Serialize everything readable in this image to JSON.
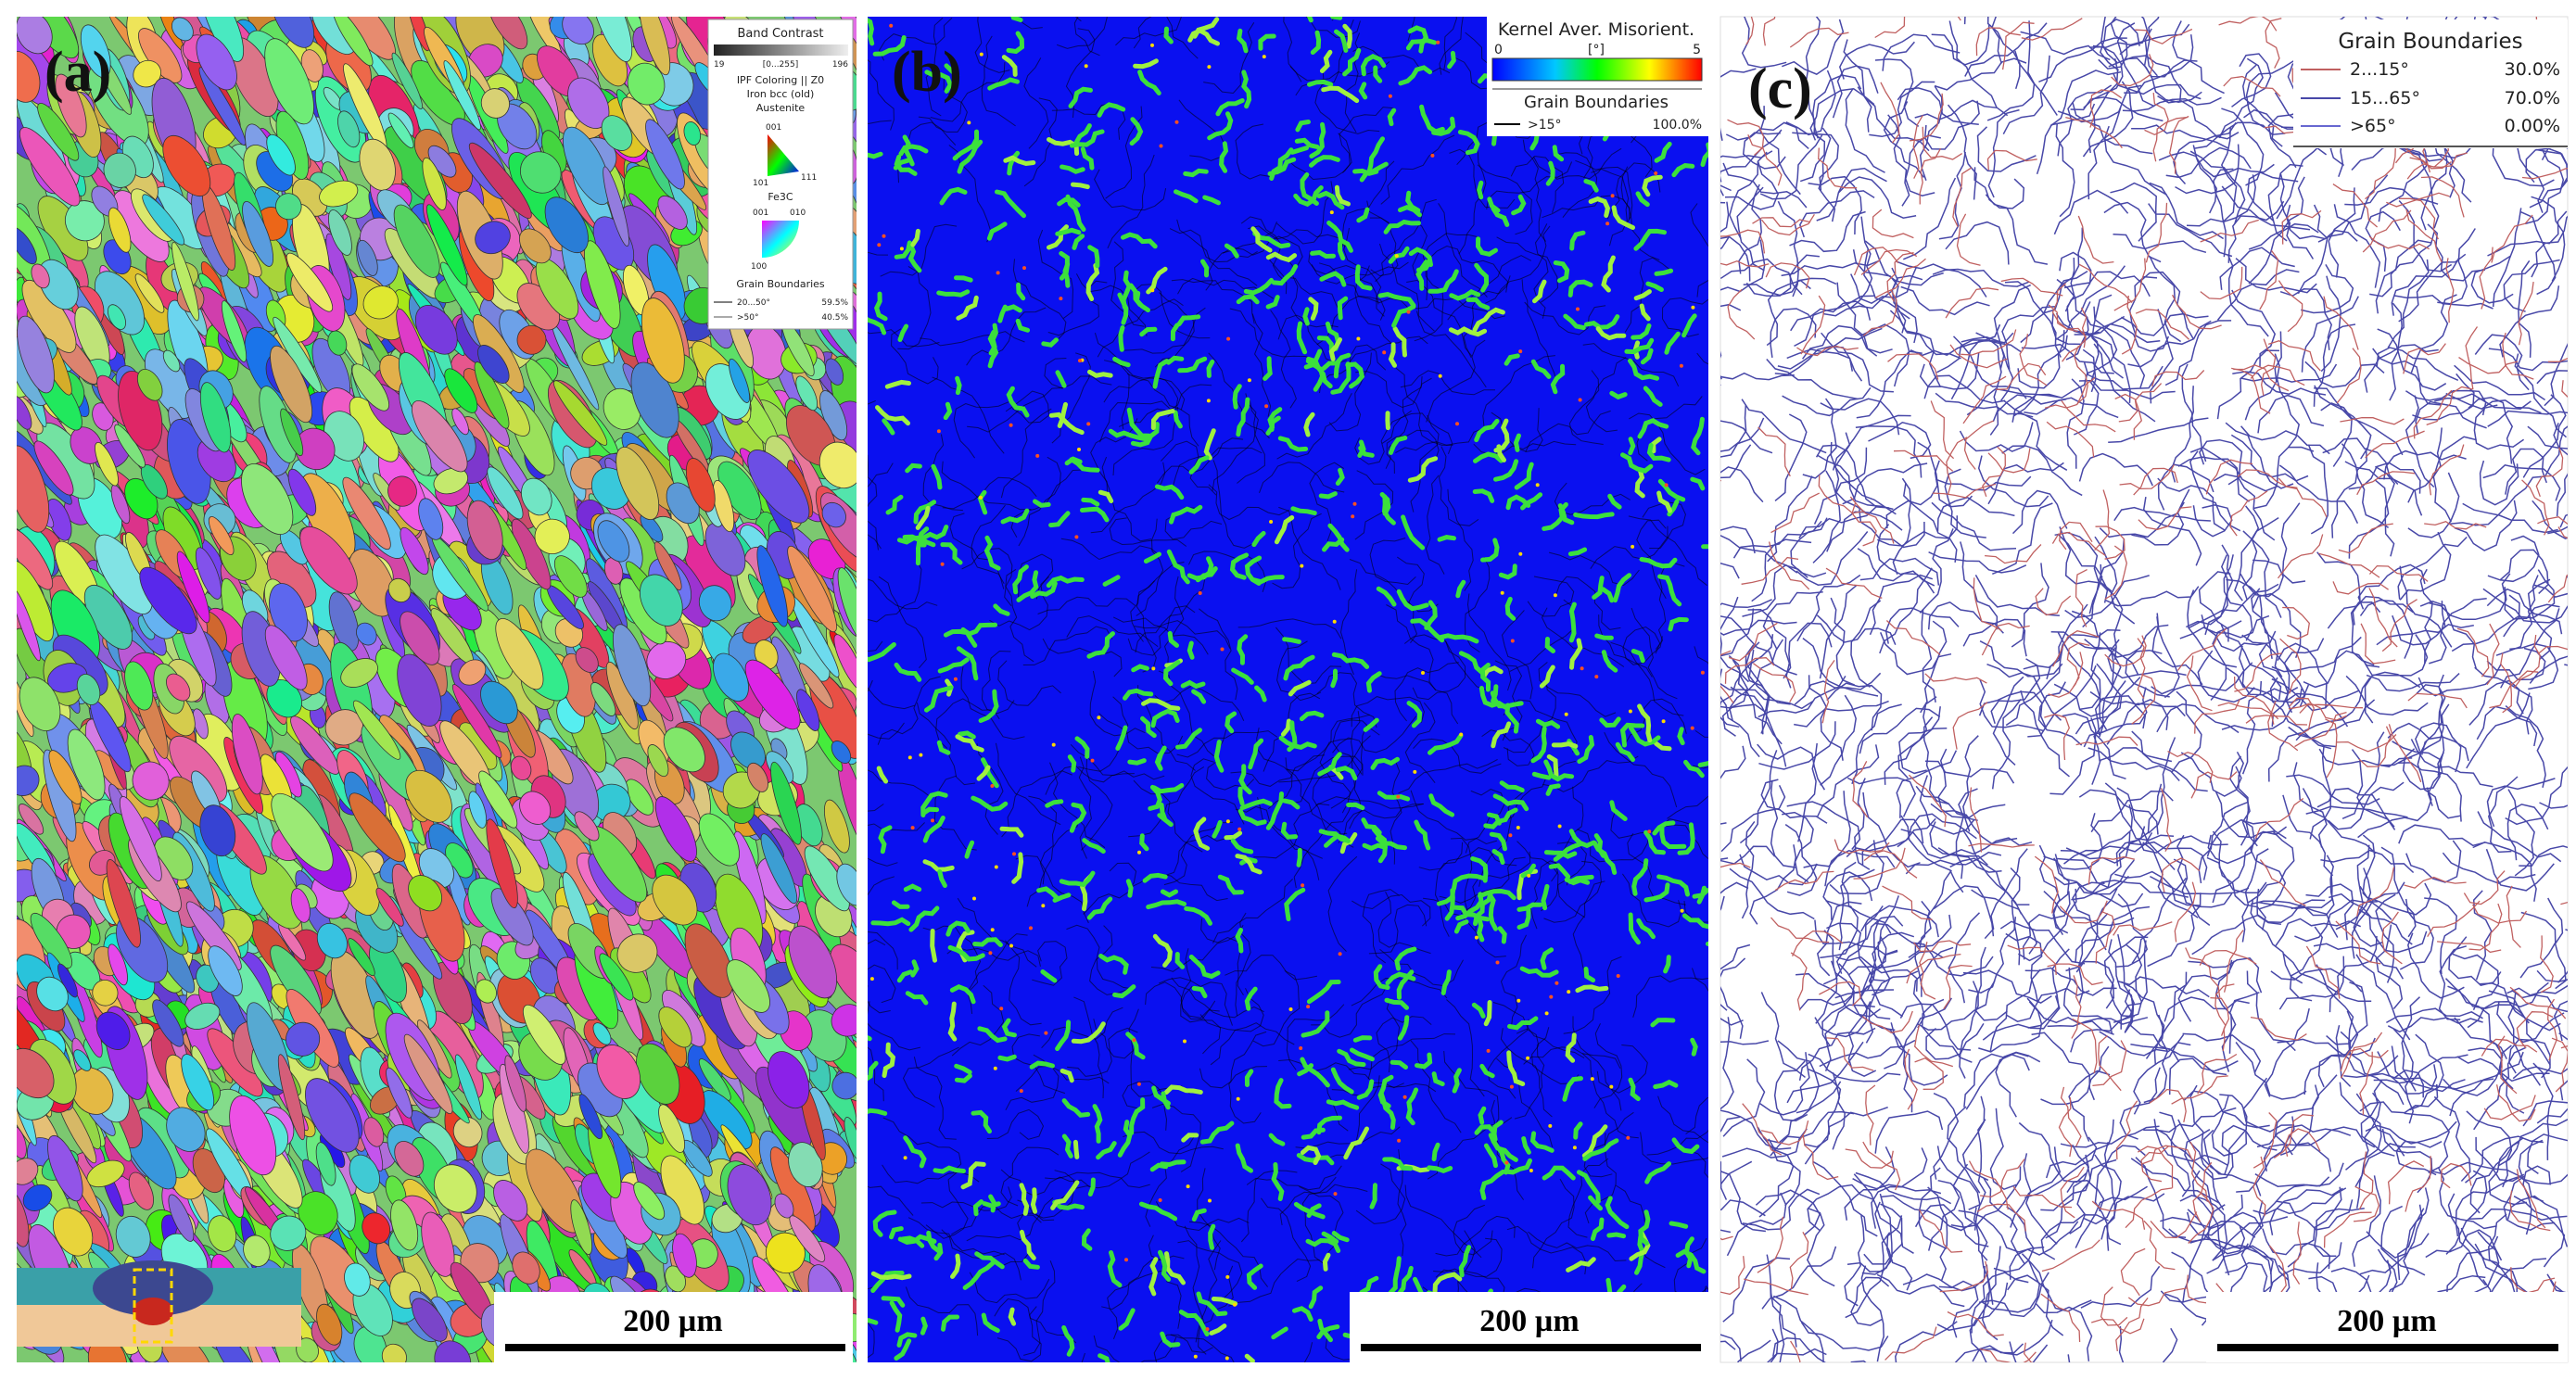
{
  "panel_a": {
    "label": "(a)",
    "scale_bar": "200 µm",
    "legend": {
      "band_contrast": "Band Contrast",
      "bc_min": "19",
      "bc_range": "[0...255]",
      "bc_max": "196",
      "ipf_title": "IPF Coloring || Z0",
      "phase1": "Iron bcc (old)",
      "phase1_name": "Austenite",
      "tri1": [
        "001",
        "101",
        "111"
      ],
      "phase2": "Fe3C",
      "tri2": [
        "001",
        "010",
        "100"
      ],
      "gb_title": "Grain Boundaries",
      "gb_rows": [
        [
          "20...50°",
          "59.5%"
        ],
        [
          ">50°",
          "40.5%"
        ]
      ]
    }
  },
  "panel_b": {
    "label": "(b)",
    "scale_bar": "200 µm",
    "legend": {
      "title": "Kernel Aver. Misorient.",
      "min": "0",
      "unit": "[°]",
      "max": "5",
      "gb_title": "Grain Boundaries",
      "gb_rows": [
        [
          ">15°",
          "100.0%"
        ]
      ]
    }
  },
  "panel_c": {
    "label": "(c)",
    "scale_bar": "200 µm",
    "legend": {
      "gb_title": "Grain Boundaries",
      "gb_rows": [
        [
          "2...15°",
          "30.0%"
        ],
        [
          "15...65°",
          "70.0%"
        ],
        [
          ">65°",
          "0.00%"
        ]
      ]
    }
  }
}
